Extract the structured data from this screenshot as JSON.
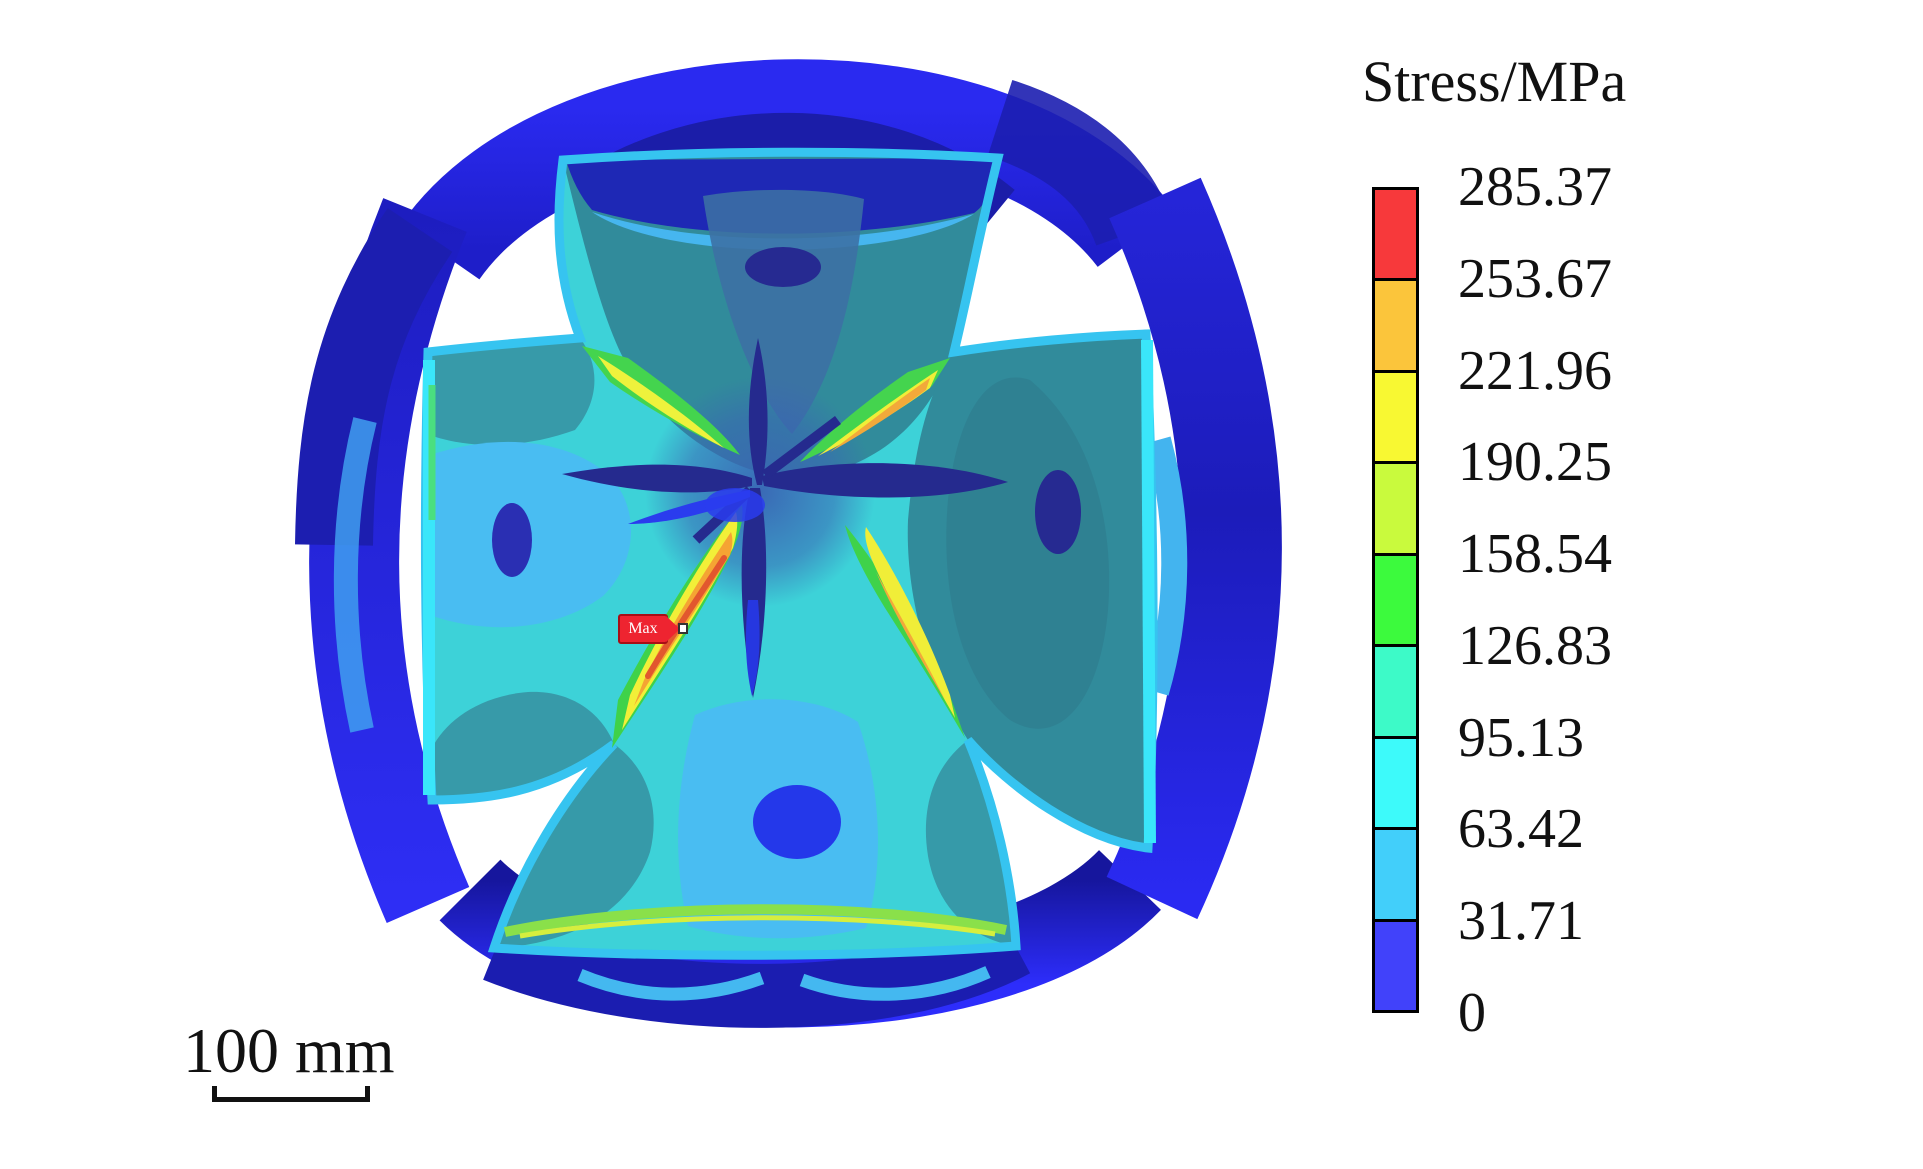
{
  "figure": {
    "description": "Finite-element stress contour plot of a cross-shaped component with four end flanges",
    "background_color": "#ffffff"
  },
  "legend": {
    "title": "Stress/MPa",
    "ticks": [
      "285.37",
      "253.67",
      "221.96",
      "190.25",
      "158.54",
      "126.83",
      "95.13",
      "63.42",
      "31.71",
      "0"
    ],
    "segment_colors": [
      "#f7393b",
      "#fbc53b",
      "#f8f832",
      "#c9fa3d",
      "#3cfa3d",
      "#3dfac8",
      "#3dfafa",
      "#42cffa",
      "#4142fa"
    ]
  },
  "annotations": {
    "max_label": "Max",
    "scale_bar_label": "100 mm"
  },
  "chart_data": {
    "type": "heatmap",
    "title": "Stress/MPa",
    "units": "MPa",
    "contour_levels": [
      0,
      31.71,
      63.42,
      95.13,
      126.83,
      158.54,
      190.25,
      221.96,
      253.67,
      285.37
    ],
    "level_colors_low_to_high": [
      "#4142fa",
      "#42cffa",
      "#3dfafa",
      "#3dfac8",
      "#3cfa3d",
      "#c9fa3d",
      "#f8f832",
      "#fbc53b",
      "#f7393b"
    ],
    "min_stress_mpa": 0,
    "max_stress_mpa": 285.37,
    "max_marker_location": "lower-left diagonal fillet of the cross web, marked with red Max tag",
    "scale_bar_mm": 100,
    "legend_position": "right",
    "notes": "Blue outer flange rings carry lowest stress (0-63 MPa); cross web faces mostly 63-127 MPa (cyan/teal); dark blue star-shaped low-stress petals at the center; yellow-orange high-stress bands (190-254 MPa) radiate diagonally from the center toward the four fillets; peak 285.37 MPa at lower-left fillet."
  }
}
